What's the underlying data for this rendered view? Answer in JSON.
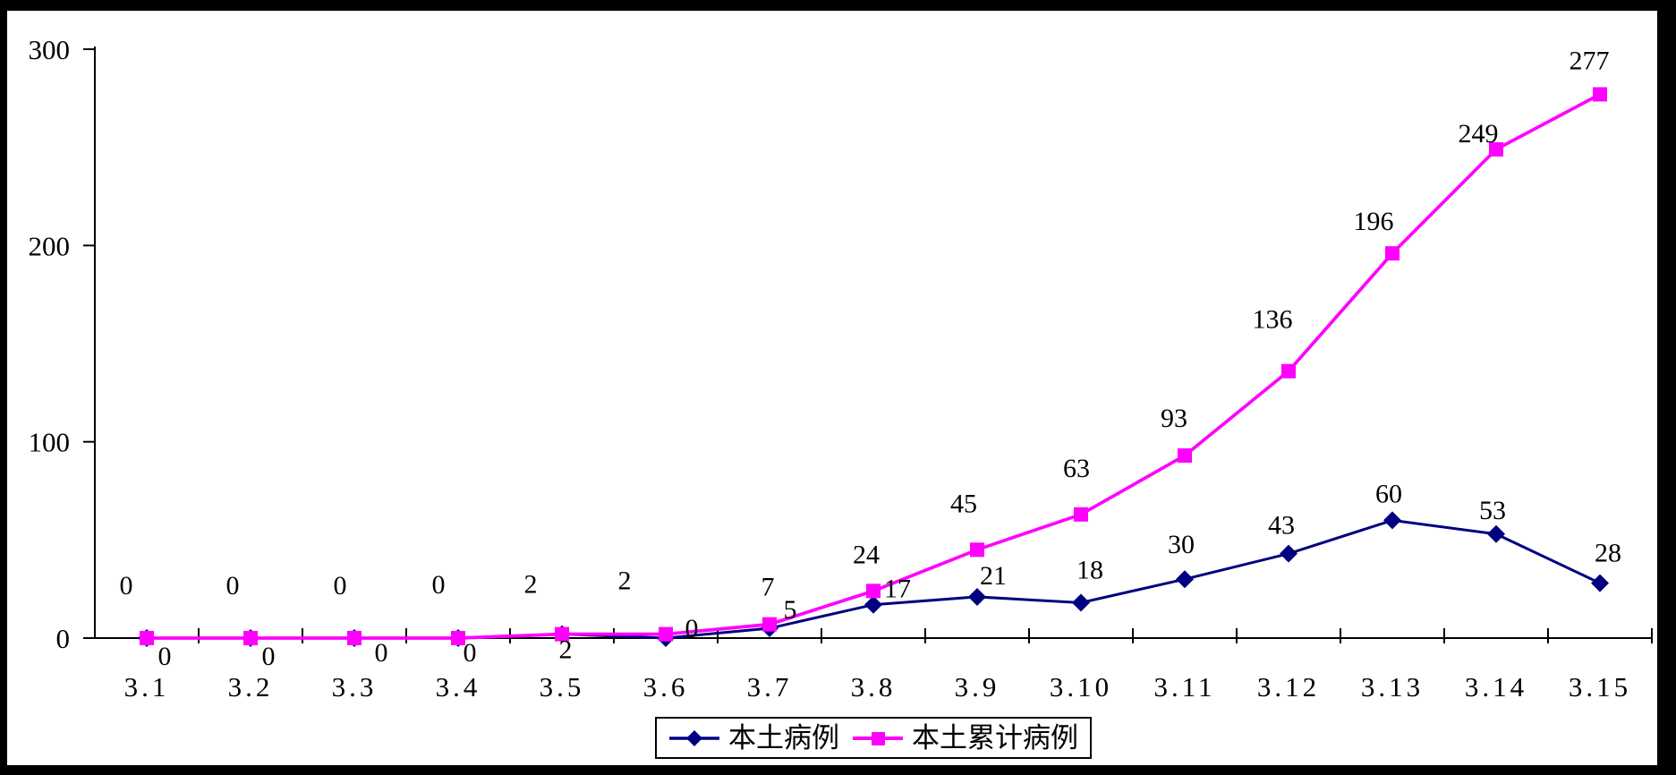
{
  "chart_data": {
    "type": "line",
    "title": "",
    "xlabel": "",
    "ylabel": "",
    "categories": [
      "3.1",
      "3.2",
      "3.3",
      "3.4",
      "3.5",
      "3.6",
      "3.7",
      "3.8",
      "3.9",
      "3.10",
      "3.11",
      "3.12",
      "3.13",
      "3.14",
      "3.15"
    ],
    "series": [
      {
        "name": "本土病例",
        "marker": "diamond",
        "color": "#000080",
        "values": [
          0,
          0,
          0,
          0,
          2,
          0,
          5,
          17,
          21,
          18,
          30,
          43,
          60,
          53,
          28
        ]
      },
      {
        "name": "本土累计病例",
        "marker": "square",
        "color": "#FF00FF",
        "values": [
          0,
          0,
          0,
          0,
          2,
          2,
          7,
          24,
          45,
          63,
          93,
          136,
          196,
          249,
          277
        ]
      }
    ],
    "ylim": [
      0,
      300
    ],
    "yticks": [
      0,
      100,
      200,
      300
    ],
    "grid": false,
    "data_labels": true,
    "legend_position": "bottom"
  },
  "colors": {
    "background": "#FFFFFF",
    "frame": "#000000",
    "axis": "#000000",
    "label_text": "#000000"
  }
}
